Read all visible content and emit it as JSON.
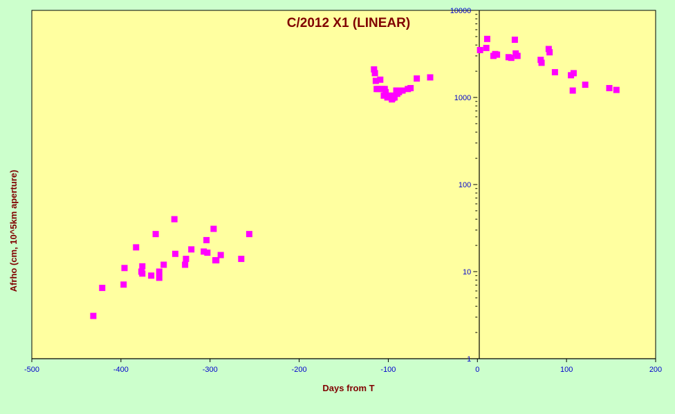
{
  "chart_data": {
    "type": "scatter",
    "title": "C/2012 X1 (LINEAR)",
    "xlabel": "Days from  T",
    "ylabel": "Afrho (cm, 10^5km  aperture)",
    "xlim": [
      -500,
      200
    ],
    "ylim": [
      1,
      10000
    ],
    "yscale": "log",
    "x_ticks": [
      "-500",
      "-400",
      "-300",
      "-200",
      "-100",
      "0",
      "100",
      "200"
    ],
    "y_ticks": [
      "1",
      "10",
      "100",
      "1000",
      "10000"
    ],
    "grid": false,
    "colors": {
      "plot_background": "#ffffa0",
      "page_background": "#ccffcc",
      "marker": "#ff00ff",
      "title": "#800000",
      "tick_labels": "#0000cc"
    },
    "series": [
      {
        "marker": "square",
        "x": [
          -431,
          -421,
          -397,
          -396,
          -383,
          -377,
          -376,
          -376,
          -366,
          -361,
          -357,
          -357,
          -352,
          -340,
          -339,
          -328,
          -327,
          -321,
          -307,
          -304,
          -303,
          -296,
          -294,
          -293,
          -288,
          -265,
          -256,
          -116,
          -115,
          -114,
          -113,
          -111,
          -109,
          -107,
          -105,
          -104,
          -103,
          -101,
          -100,
          -98,
          -96,
          -95,
          -94,
          -93,
          -91,
          -90,
          -88,
          -84,
          -78,
          -75,
          -68,
          -53,
          3,
          10,
          11,
          18,
          20,
          22,
          35,
          38,
          42,
          43,
          45,
          71,
          72,
          80,
          81,
          87,
          105,
          107,
          108,
          121,
          148,
          156
        ],
        "y": [
          3.1,
          6.5,
          7.1,
          11,
          19,
          10,
          11.5,
          9.5,
          9,
          27,
          10,
          8.5,
          12,
          40,
          16,
          12,
          14,
          18,
          17,
          23,
          16.5,
          31,
          13.5,
          13.5,
          15.5,
          14,
          27,
          2100,
          1900,
          1550,
          1250,
          1250,
          1600,
          1250,
          1050,
          1250,
          1150,
          1000,
          1050,
          1000,
          950,
          980,
          1050,
          1000,
          1200,
          1100,
          1150,
          1200,
          1250,
          1280,
          1650,
          1700,
          3500,
          3700,
          4700,
          3000,
          3150,
          3100,
          2900,
          2850,
          4600,
          3200,
          3000,
          2700,
          2500,
          3600,
          3300,
          1950,
          1800,
          1200,
          1900,
          1400,
          1280,
          1220
        ]
      }
    ]
  }
}
